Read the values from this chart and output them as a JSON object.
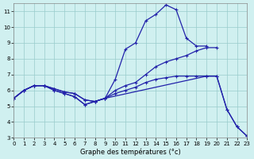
{
  "xlabel": "Graphe des températures (°c)",
  "bg_color": "#d0f0f0",
  "grid_color": "#99cccc",
  "line_color": "#2222aa",
  "xlim": [
    0,
    23
  ],
  "ylim": [
    3,
    11.5
  ],
  "yticks": [
    3,
    4,
    5,
    6,
    7,
    8,
    9,
    10,
    11
  ],
  "xticks": [
    0,
    1,
    2,
    3,
    4,
    5,
    6,
    7,
    8,
    9,
    10,
    11,
    12,
    13,
    14,
    15,
    16,
    17,
    18,
    19,
    20,
    21,
    22,
    23
  ],
  "line1_x": [
    0,
    1,
    2,
    3,
    4,
    5,
    6,
    7,
    8,
    9,
    10,
    11,
    12,
    13,
    14,
    15,
    16,
    17,
    18,
    19,
    20,
    21
  ],
  "line1_y": [
    5.5,
    6.0,
    6.3,
    6.3,
    6.1,
    5.9,
    5.8,
    5.4,
    5.3,
    5.5,
    6.7,
    8.6,
    9.0,
    10.4,
    10.8,
    11.4,
    11.1,
    9.3,
    8.8,
    8.8,
    null,
    null
  ],
  "line2_x": [
    0,
    1,
    2,
    3,
    4,
    5,
    6,
    7,
    8,
    9,
    10,
    11,
    12,
    13,
    14,
    15,
    16,
    17,
    18,
    19,
    20
  ],
  "line2_y": [
    5.5,
    6.0,
    6.3,
    6.3,
    6.1,
    5.9,
    5.8,
    5.4,
    5.3,
    5.5,
    6.0,
    6.3,
    6.5,
    7.0,
    7.5,
    7.8,
    8.0,
    8.2,
    8.5,
    8.7,
    8.7
  ],
  "line3_x": [
    0,
    1,
    2,
    3,
    4,
    5,
    6,
    7,
    8,
    9,
    19,
    20,
    21,
    22,
    23
  ],
  "line3_y": [
    5.5,
    6.0,
    6.3,
    6.3,
    6.0,
    5.8,
    5.6,
    5.1,
    5.3,
    5.5,
    6.9,
    6.9,
    4.8,
    3.7,
    3.1
  ],
  "line4_x": [
    0,
    1,
    2,
    3,
    4,
    5,
    6,
    7,
    8,
    9,
    10,
    11,
    12,
    13,
    14,
    15,
    16,
    17,
    18,
    19,
    20,
    21,
    22,
    23
  ],
  "line4_y": [
    5.5,
    6.0,
    6.3,
    6.3,
    6.0,
    5.8,
    5.6,
    5.1,
    5.3,
    5.5,
    5.8,
    6.0,
    6.2,
    6.5,
    6.7,
    6.8,
    6.9,
    6.9,
    6.9,
    6.9,
    6.9,
    4.8,
    3.7,
    3.1
  ]
}
